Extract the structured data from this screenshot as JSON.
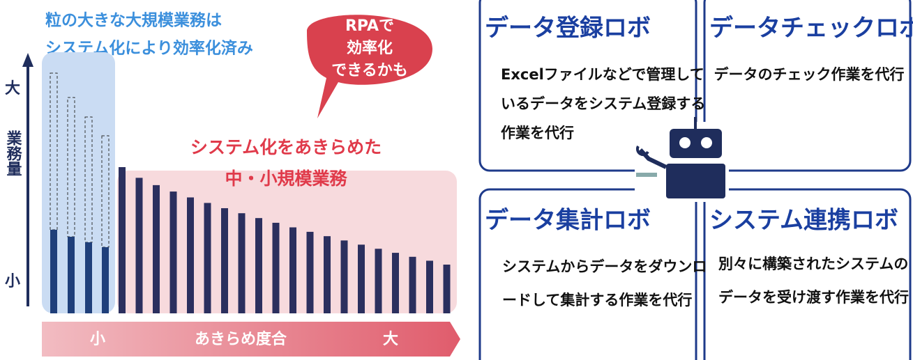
{
  "left_panel": {
    "caption": [
      "粒の大きな大規模業務は",
      "システム化により効率化済み"
    ],
    "y_axis": {
      "top": "大",
      "label": "業務量",
      "bottom": "小"
    },
    "bubble": [
      "RPAで",
      "効率化",
      "できるかも"
    ],
    "region_label": [
      "システム化をあきらめた",
      "中・小規模業務"
    ],
    "scale": {
      "low": "小",
      "label": "あきらめ度合",
      "high": "大"
    }
  },
  "cards": [
    {
      "title": "データ登録ロボ",
      "lines": [
        "Excelファイルなどで管理して",
        "いるデータをシステム登録する",
        "作業を代行"
      ]
    },
    {
      "title": "データチェックロボ",
      "lines": [
        "データのチェック作業を代行"
      ]
    },
    {
      "title": "データ集計ロボ",
      "lines": [
        "システムからデータをダウンロ",
        "ードして集計する作業を代行"
      ]
    },
    {
      "title": "システム連携ロボ",
      "lines": [
        "別々に構築されたシステムの",
        "データを受け渡す作業を代行"
      ]
    }
  ]
}
